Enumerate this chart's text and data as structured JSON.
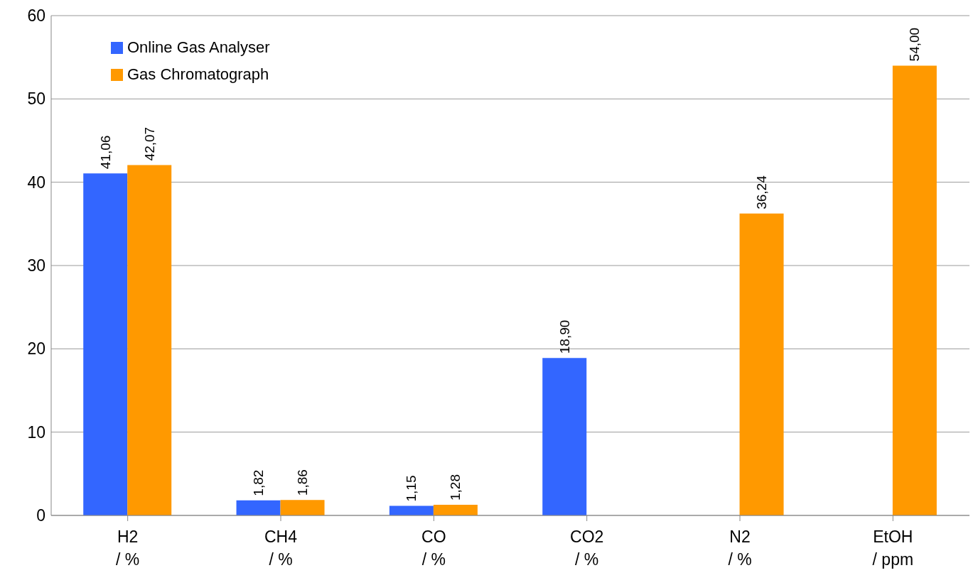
{
  "chart_data": {
    "type": "bar",
    "categories": [
      "H2 / %",
      "CH4 / %",
      "CO / %",
      "CO2 / %",
      "N2 / %",
      "EtOH / ppm"
    ],
    "series": [
      {
        "name": "Online Gas Analyser",
        "color": "#3366ff",
        "values": [
          41.06,
          1.82,
          1.15,
          18.9,
          null,
          null
        ],
        "value_labels": [
          "41,06",
          "1,82",
          "1,15",
          "18,90",
          null,
          null
        ]
      },
      {
        "name": "Gas Chromatograph",
        "color": "#ff9900",
        "values": [
          42.07,
          1.86,
          1.28,
          null,
          36.24,
          54.0
        ],
        "value_labels": [
          "42,07",
          "1,86",
          "1,28",
          null,
          "36,24",
          "54,00"
        ]
      }
    ],
    "ylim": [
      0,
      60
    ],
    "yticks": [
      0,
      10,
      20,
      30,
      40,
      50,
      60
    ],
    "grid": "y",
    "legend": "top left"
  }
}
